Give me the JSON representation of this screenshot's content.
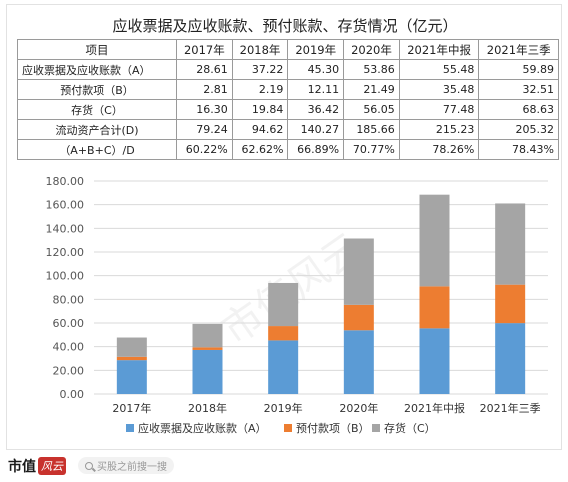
{
  "title": "应收票据及应收账款、预付账款、存货情况（亿元）",
  "table": {
    "headers": [
      "项目",
      "2017年",
      "2018年",
      "2019年",
      "2020年",
      "2021年中报",
      "2021年三季"
    ],
    "rows": [
      {
        "label": "应收票据及应收账款（A）",
        "values": [
          "28.61",
          "37.22",
          "45.30",
          "53.86",
          "55.48",
          "59.89"
        ]
      },
      {
        "label": "预付款项（B）",
        "values": [
          "2.81",
          "2.19",
          "12.11",
          "21.49",
          "35.48",
          "32.51"
        ]
      },
      {
        "label": "存货（C）",
        "values": [
          "16.30",
          "19.84",
          "36.42",
          "56.05",
          "77.48",
          "68.63"
        ]
      },
      {
        "label": "流动资产合计(D)",
        "values": [
          "79.24",
          "94.62",
          "140.27",
          "185.66",
          "215.23",
          "205.32"
        ]
      },
      {
        "label": "（A+B+C）/D",
        "values": [
          "60.22%",
          "62.62%",
          "66.89%",
          "70.77%",
          "78.26%",
          "78.43%"
        ]
      }
    ]
  },
  "chart_data": {
    "type": "bar",
    "stacked": true,
    "categories": [
      "2017年",
      "2018年",
      "2019年",
      "2020年",
      "2021年中报",
      "2021年三季"
    ],
    "series": [
      {
        "name": "应收票据及应收账款（A）",
        "values": [
          28.61,
          37.22,
          45.3,
          53.86,
          55.48,
          59.89
        ],
        "color": "#5b9bd5"
      },
      {
        "name": "预付款项（B）",
        "values": [
          2.81,
          2.19,
          12.11,
          21.49,
          35.48,
          32.51
        ],
        "color": "#ed7d31"
      },
      {
        "name": "存货（C）",
        "values": [
          16.3,
          19.84,
          36.42,
          56.05,
          77.48,
          68.63
        ],
        "color": "#a5a5a5"
      }
    ],
    "y_ticks": [
      "0.00",
      "20.00",
      "40.00",
      "60.00",
      "80.00",
      "100.00",
      "120.00",
      "140.00",
      "160.00",
      "180.00"
    ],
    "ylim": [
      0,
      180
    ],
    "grid": true,
    "legend": "bottom"
  },
  "watermark": "市值风云",
  "footer": {
    "logo_text": "市值",
    "logo_badge": "风云",
    "search_placeholder": "买股之前搜一搜"
  }
}
